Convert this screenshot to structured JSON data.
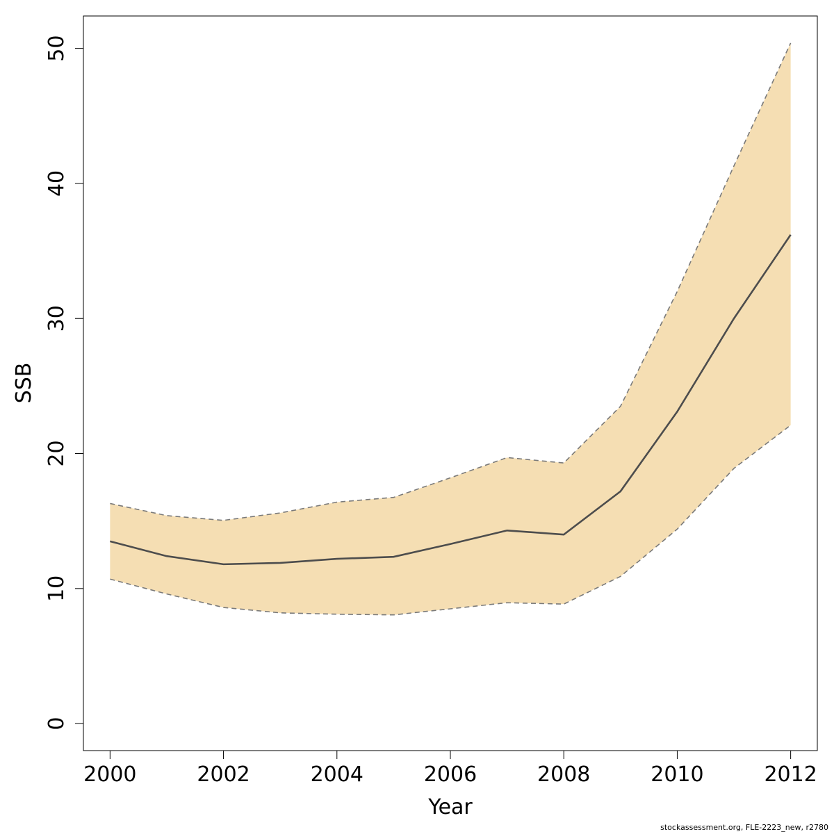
{
  "chart_data": {
    "type": "area",
    "xlabel": "Year",
    "ylabel": "SSB",
    "x": [
      2000,
      2001,
      2002,
      2003,
      2004,
      2005,
      2006,
      2007,
      2008,
      2009,
      2010,
      2011,
      2012
    ],
    "xlim": [
      1999.53,
      2012.47
    ],
    "ylim": [
      -2,
      52.4
    ],
    "x_ticks": [
      2000,
      2002,
      2004,
      2006,
      2008,
      2010,
      2012
    ],
    "y_ticks": [
      0,
      10,
      20,
      30,
      40,
      50
    ],
    "x_tick_labels": [
      "2000",
      "2002",
      "2004",
      "2006",
      "2008",
      "2010",
      "2012"
    ],
    "y_tick_labels": [
      "0",
      "10",
      "20",
      "30",
      "40",
      "50"
    ],
    "grid": false,
    "series": [
      {
        "role": "estimate",
        "line_style": "solid",
        "values": [
          13.5,
          12.4,
          11.8,
          11.9,
          12.2,
          12.35,
          13.3,
          14.3,
          14.0,
          17.2,
          23.1,
          30.0,
          36.2
        ]
      },
      {
        "role": "upper_bound",
        "line_style": "dashed",
        "values": [
          16.3,
          15.4,
          15.05,
          15.6,
          16.4,
          16.75,
          18.2,
          19.7,
          19.3,
          23.5,
          32.0,
          41.3,
          50.4
        ]
      },
      {
        "role": "lower_bound",
        "line_style": "dashed",
        "values": [
          10.7,
          9.6,
          8.6,
          8.2,
          8.1,
          8.05,
          8.5,
          8.95,
          8.85,
          10.9,
          14.4,
          18.9,
          22.1
        ]
      }
    ],
    "colors": {
      "band": "#f5deb3",
      "line": "#4d4d4d",
      "bounds": "#7a7a7a",
      "axis": "#000000"
    }
  },
  "footer": {
    "note": "stockassessment.org, FLE-2223_new, r2780"
  }
}
